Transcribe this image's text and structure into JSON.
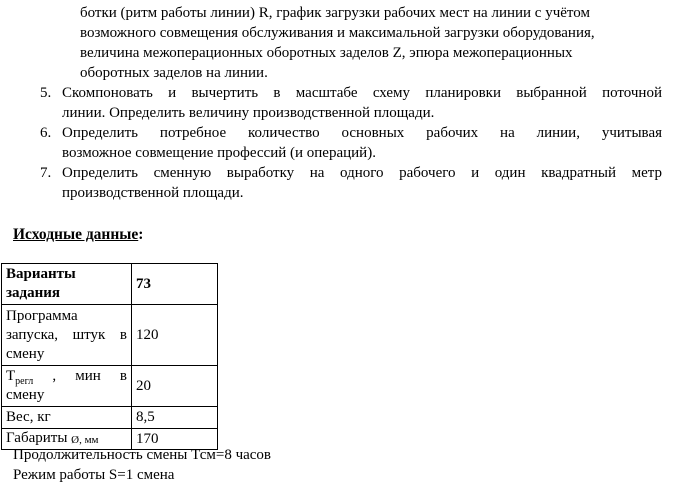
{
  "page": {
    "background": "#ffffff",
    "text_color": "#000000"
  },
  "intro": {
    "lines": [
      "ботки (ритм работы линии) R, график загрузки рабочих мест на линии с учётом",
      "возможного совмещения обслуживания и максимальной загрузки оборудования,",
      "величина межоперационных оборотных заделов Z, эпюра межоперационных",
      "оборотных заделов на линии."
    ]
  },
  "items": [
    {
      "number": "5.",
      "line1": "Скомпоновать и вычертить в масштабе схему планировки выбранной поточной",
      "line2": "линии. Определить величину производственной площади."
    },
    {
      "number": "6.",
      "line1": "Определить потребное количество основных рабочих на линии, учитывая",
      "line2": "возможное совмещение профессий (и операций)."
    },
    {
      "number": "7.",
      "line1": "Определить сменную выработку на одного рабочего и один квадратный метр",
      "line2": "производственной площади."
    }
  ],
  "heading": {
    "text": "Исходные данные",
    "colon": ":"
  },
  "table": {
    "rows": [
      {
        "label_line1": "Варианты",
        "label_line2": "задания",
        "value": "73"
      },
      {
        "label_line1": "Программа",
        "label_line2": "запуска, штук в",
        "label_line3": "смену",
        "value": "120"
      },
      {
        "label_t": "Т",
        "label_sub": "регл",
        "label_rest": " , мин в",
        "label_line2": "смену",
        "value": "20"
      },
      {
        "label": "Вес, кг",
        "value": "8,5"
      },
      {
        "label_main": "Габариты ",
        "label_unit": "Ø, мм",
        "value": "170"
      }
    ]
  },
  "footer": {
    "line1": "Продолжительность смены Тсм=8 часов",
    "line2": "Режим работы S=1 смена"
  }
}
